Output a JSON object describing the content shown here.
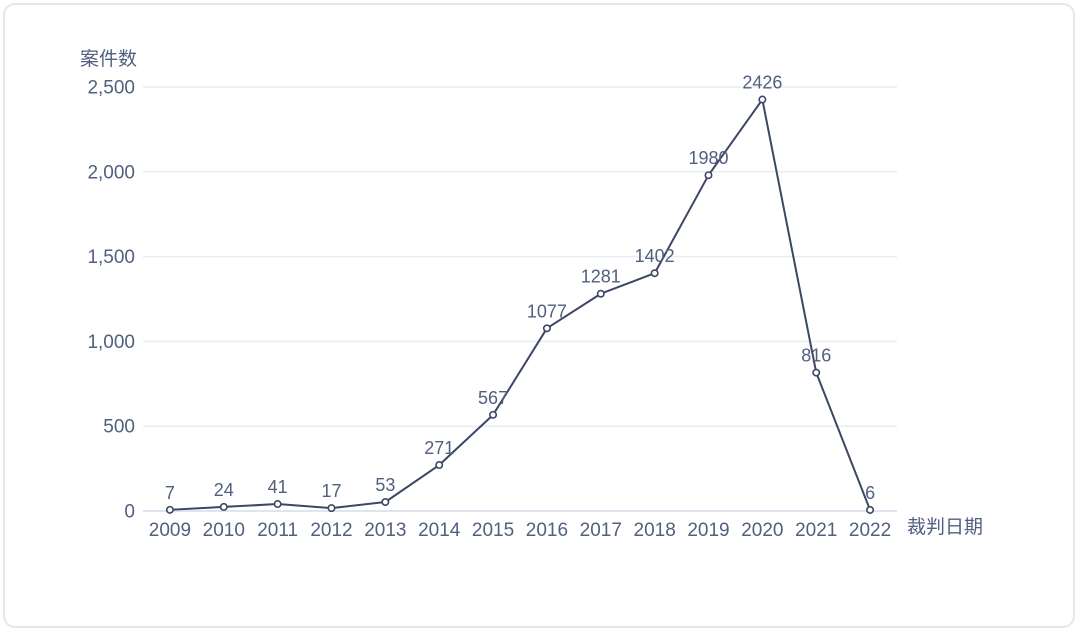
{
  "chart_data": {
    "type": "line",
    "title": "案件数",
    "xlabel": "裁判日期",
    "ylabel": "案件数",
    "categories": [
      "2009",
      "2010",
      "2011",
      "2012",
      "2013",
      "2014",
      "2015",
      "2016",
      "2017",
      "2018",
      "2019",
      "2020",
      "2021",
      "2022"
    ],
    "values": [
      7,
      24,
      41,
      17,
      53,
      271,
      567,
      1077,
      1281,
      1402,
      1980,
      2426,
      816,
      6
    ],
    "data_labels": [
      "7",
      "24",
      "41",
      "17",
      "53",
      "271",
      "567",
      "1077",
      "1281",
      "1402",
      "1980",
      "2426",
      "816",
      "6"
    ],
    "ylim": [
      0,
      2500
    ],
    "y_ticks": [
      {
        "value": 0,
        "label": "0"
      },
      {
        "value": 500,
        "label": "500"
      },
      {
        "value": 1000,
        "label": "1,000"
      },
      {
        "value": 1500,
        "label": "1,500"
      },
      {
        "value": 2000,
        "label": "2,000"
      },
      {
        "value": 2500,
        "label": "2,500"
      }
    ],
    "grid": "horizontal-only",
    "legend_position": "none",
    "marker": "open-circle"
  },
  "colors": {
    "line": "#3b4764",
    "marker_fill": "#ffffff",
    "text": "#51607f",
    "grid_line": "#e9ecf2",
    "zero_axis_line": "#dfe5ee",
    "card_border": "#e3e7ee",
    "background": "#ffffff"
  }
}
